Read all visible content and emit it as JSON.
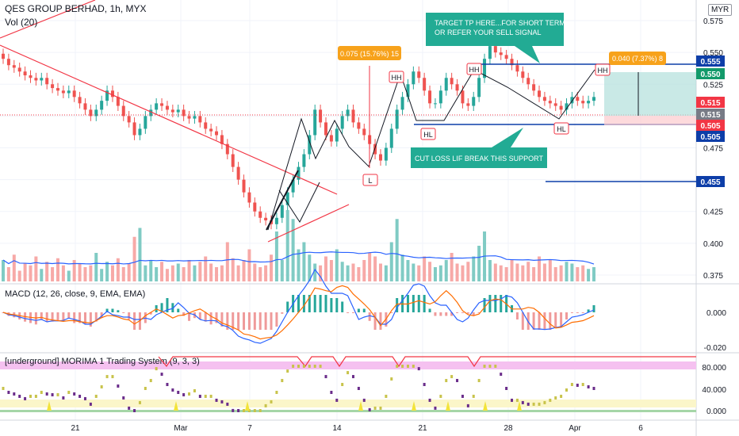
{
  "header": {
    "title": "QES GROUP BERHAD, 1h, MYX",
    "volume_label": "Vol (20)",
    "currency": "MYR"
  },
  "chart_data": [
    {
      "type": "candlestick",
      "title": "QES GROUP BERHAD, 1h, MYX",
      "y_ticks": [
        "0.575",
        "0.550",
        "0.525",
        "0.500",
        "0.475",
        "0.450",
        "0.425",
        "0.400",
        "0.375"
      ],
      "ylim": [
        0.37,
        0.585
      ],
      "x_ticks": [
        "21",
        "Mar",
        "7",
        "14",
        "21",
        "28",
        "Apr",
        "6"
      ],
      "close_series": [
        0.545,
        0.54,
        0.538,
        0.535,
        0.532,
        0.53,
        0.528,
        0.53,
        0.525,
        0.522,
        0.52,
        0.518,
        0.52,
        0.515,
        0.51,
        0.505,
        0.5,
        0.505,
        0.512,
        0.52,
        0.515,
        0.508,
        0.5,
        0.495,
        0.485,
        0.49,
        0.5,
        0.505,
        0.51,
        0.508,
        0.505,
        0.503,
        0.505,
        0.5,
        0.498,
        0.5,
        0.495,
        0.49,
        0.488,
        0.485,
        0.478,
        0.47,
        0.46,
        0.45,
        0.44,
        0.432,
        0.425,
        0.42,
        0.418,
        0.415,
        0.42,
        0.43,
        0.44,
        0.45,
        0.46,
        0.47,
        0.485,
        0.505,
        0.495,
        0.485,
        0.48,
        0.49,
        0.5,
        0.505,
        0.495,
        0.49,
        0.485,
        0.478,
        0.47,
        0.465,
        0.475,
        0.49,
        0.505,
        0.515,
        0.525,
        0.535,
        0.53,
        0.52,
        0.51,
        0.51,
        0.52,
        0.53,
        0.525,
        0.52,
        0.51,
        0.508,
        0.515,
        0.53,
        0.545,
        0.555,
        0.55,
        0.548,
        0.545,
        0.54,
        0.535,
        0.53,
        0.525,
        0.52,
        0.515,
        0.512,
        0.51,
        0.508,
        0.505,
        0.51,
        0.515,
        0.512,
        0.51,
        0.512,
        0.515
      ],
      "volume": [
        12,
        8,
        15,
        6,
        10,
        9,
        14,
        7,
        11,
        8,
        13,
        9,
        6,
        12,
        10,
        8,
        9,
        16,
        7,
        11,
        9,
        13,
        8,
        10,
        25,
        30,
        9,
        12,
        8,
        11,
        7,
        9,
        10,
        8,
        12,
        9,
        11,
        14,
        10,
        8,
        9,
        22,
        13,
        9,
        12,
        18,
        10,
        8,
        9,
        15,
        28,
        12,
        40,
        35,
        18,
        22,
        15,
        10,
        9,
        14,
        12,
        18,
        11,
        9,
        10,
        8,
        12,
        16,
        14,
        10,
        9,
        22,
        35,
        15,
        12,
        10,
        9,
        14,
        11,
        8,
        9,
        12,
        16,
        10,
        9,
        11,
        14,
        20,
        28,
        12,
        10,
        9,
        8,
        12,
        10,
        9,
        11,
        8,
        14,
        10,
        12,
        8,
        9,
        11,
        10,
        8,
        9,
        7,
        8
      ],
      "price_labels": [
        {
          "value": "0.555",
          "color": "#0d3ea8"
        },
        {
          "value": "0.550",
          "color": "#139a6a"
        },
        {
          "value": "0.515",
          "color": "#f23645"
        },
        {
          "value": "0.515",
          "color": "#787b86"
        },
        {
          "value": "0.505",
          "color": "#f23645"
        },
        {
          "value": "0.505",
          "color": "#0d3ea8"
        },
        {
          "value": "0.455",
          "color": "#0d3ea8"
        }
      ],
      "annotations": {
        "callout_target": "TARGET TP HERE...FOR SHORT TERM\nOR REFER YOUR SELL SIGNAL",
        "callout_cutloss": "CUT LOSS LIF BREAK THIS SUPPORT",
        "measure_1": "0.075 (15.76%) 15",
        "measure_2": "0.040 (7.37%) 8",
        "pivot_labels": [
          "HH",
          "HH",
          "HH",
          "HL",
          "HL",
          "L"
        ]
      }
    },
    {
      "type": "line",
      "title": "MACD (12, 26, close, 9, EMA, EMA)",
      "y_ticks": [
        "0.000",
        "-0.020"
      ],
      "series": [
        {
          "name": "MACD",
          "color": "#2962ff"
        },
        {
          "name": "Signal",
          "color": "#ff6d00"
        }
      ]
    },
    {
      "type": "line",
      "title": "[underground] MORIMA 1 Trading System (9, 3, 3)",
      "y_ticks": [
        "80.000",
        "40.000",
        "0.000"
      ]
    }
  ],
  "colors": {
    "up": "#26a69a",
    "down": "#ef5350",
    "trendline": "#f23645",
    "support": "#0d3ea8",
    "callout": "#22ab94",
    "measure": "#f7a21b",
    "position_green": "#b2dfdb",
    "position_red": "#fccbcd"
  }
}
